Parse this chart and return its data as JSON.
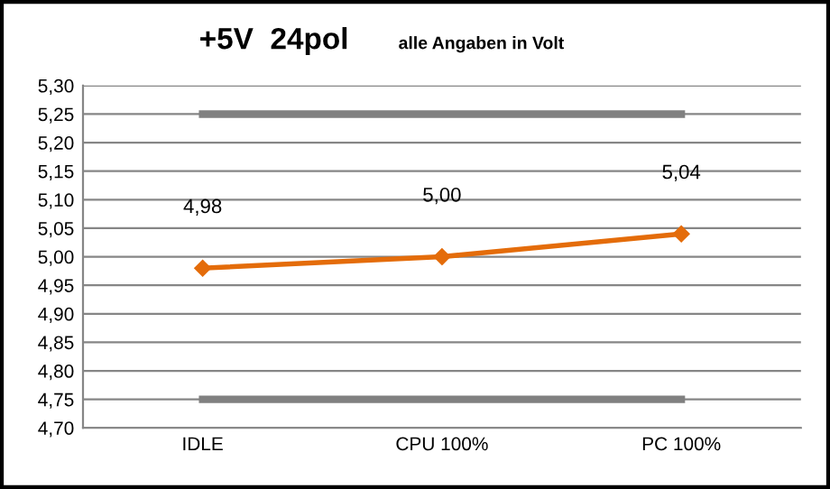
{
  "chart_data": {
    "type": "line",
    "title": "+5V  24pol",
    "subtitle": "alle Angaben in Volt",
    "categories": [
      "IDLE",
      "CPU 100%",
      "PC 100%"
    ],
    "series": [
      {
        "color": "#808080",
        "values": [
          5.25,
          5.25,
          5.25
        ],
        "marker": "none"
      },
      {
        "color": "#808080",
        "values": [
          4.75,
          4.75,
          4.75
        ],
        "marker": "none"
      },
      {
        "color": "#e46c0a",
        "values": [
          4.98,
          5.0,
          5.04
        ],
        "marker": "diamond",
        "value_labels": [
          "4,98",
          "5,00",
          "5,04"
        ]
      }
    ],
    "ylim": [
      4.7,
      5.3
    ],
    "yticks": [
      {
        "value": 4.7,
        "label": "4,70"
      },
      {
        "value": 4.75,
        "label": "4,75"
      },
      {
        "value": 4.8,
        "label": "4,80"
      },
      {
        "value": 4.85,
        "label": "4,85"
      },
      {
        "value": 4.9,
        "label": "4,90"
      },
      {
        "value": 4.95,
        "label": "4,95"
      },
      {
        "value": 5.0,
        "label": "5,00"
      },
      {
        "value": 5.05,
        "label": "5,05"
      },
      {
        "value": 5.1,
        "label": "5,10"
      },
      {
        "value": 5.15,
        "label": "5,15"
      },
      {
        "value": 5.2,
        "label": "5,20"
      },
      {
        "value": 5.25,
        "label": "5,25"
      },
      {
        "value": 5.3,
        "label": "5,30"
      }
    ],
    "grid": "y",
    "legend": false,
    "line_style": "solid"
  }
}
